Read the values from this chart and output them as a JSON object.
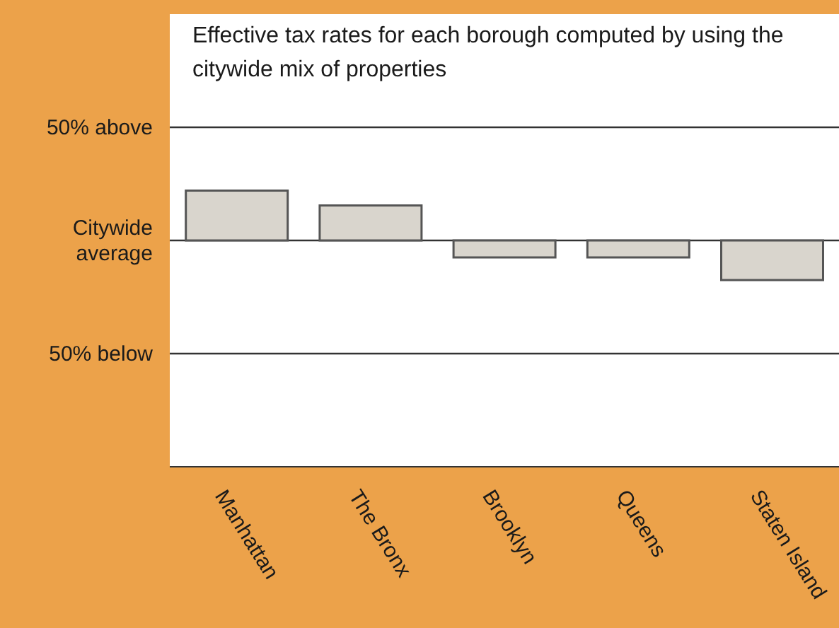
{
  "chart_data": {
    "type": "bar",
    "title": "Effective tax rates for each borough computed by using the citywide mix of properties",
    "categories": [
      "Manhattan",
      "The Bronx",
      "Brooklyn",
      "Queens",
      "Staten Island"
    ],
    "values": [
      22,
      15.5,
      -7.5,
      -7.5,
      -17.5
    ],
    "color": "#d9d5cd",
    "ylim": [
      -100,
      100
    ],
    "yticks": [
      {
        "value": 50,
        "label": "50% above"
      },
      {
        "value": 0,
        "label": "Citywide average"
      },
      {
        "value": -50,
        "label": "50% below"
      }
    ],
    "grid": "y"
  }
}
